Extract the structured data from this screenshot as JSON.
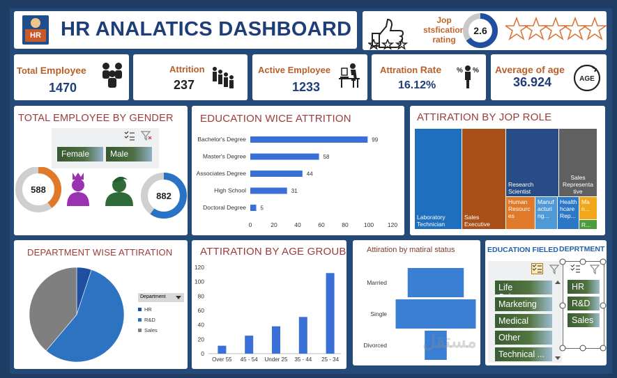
{
  "title": "HR ANALATICS DASHBOARD",
  "logo_text": "HR",
  "satisfaction": {
    "label_line1": "Jop",
    "label_line2": "stsfication",
    "label_line3": "rating",
    "value": "2.6",
    "stars_empty": 5,
    "stars_small": 3
  },
  "kpis": {
    "total_employee": {
      "label_a": "Total ",
      "label_b": "Employee",
      "value": "1470"
    },
    "attrition": {
      "label": "Attrition",
      "value": "237"
    },
    "active_employee": {
      "label": "Active Employee",
      "value": "1233"
    },
    "attrition_rate": {
      "label_a": "Attration ",
      "label_b": "Rate",
      "value": "16.12%"
    },
    "average_age": {
      "label": "Average of age",
      "value": "36.924",
      "icon_text": "AGE"
    }
  },
  "gender": {
    "title": "TOTAL EMPLOYEE BY GENDER",
    "female_label": "Female",
    "male_label": "Male",
    "female_value": "588",
    "male_value": "882"
  },
  "education": {
    "title": "EDUCATION WICE ATTRITION",
    "chart_data": {
      "type": "bar",
      "orientation": "horizontal",
      "categories": [
        "Bachelor's Degree",
        "Master's Degree",
        "Associates Degree",
        "High School",
        "Doctoral Degree"
      ],
      "values": [
        99,
        58,
        44,
        31,
        5
      ],
      "xlim": [
        0,
        120
      ],
      "xticks": [
        "0",
        "20",
        "40",
        "60",
        "80",
        "100",
        "120"
      ],
      "color": "#3a6fd8"
    }
  },
  "jobrole": {
    "title": "ATTIRATION BY JOP ROLE",
    "cells": [
      {
        "label": "Laboratory Technician",
        "color": "#1f6fbf"
      },
      {
        "label": "Sales Executive",
        "color": "#a85018"
      },
      {
        "label": "Research Scientist",
        "color": "#284d86"
      },
      {
        "label": "Sales Representa tive",
        "color": "#606060"
      },
      {
        "label": "Human Resourc es",
        "color": "#e07a2a"
      },
      {
        "label": "Manuf acturi ng...",
        "color": "#4f9ad6"
      },
      {
        "label": "Health hcare Rep...",
        "color": "#2c78c6"
      },
      {
        "label": "Ma n...",
        "color": "#f0a81a"
      },
      {
        "label": "R...",
        "color": "#4f9a3a"
      }
    ]
  },
  "department": {
    "title": "DEPARTMENT WISE ATTIRATION",
    "legend_title": "Department",
    "chart_data": {
      "type": "pie",
      "categories": [
        "HR",
        "R&D",
        "Sales"
      ],
      "values": [
        12,
        133,
        92
      ],
      "colors": [
        "#1f4fa0",
        "#2e73c2",
        "#7f7f7f"
      ]
    }
  },
  "age": {
    "title": "ATTIRATION BY AGE GROUB",
    "chart_data": {
      "type": "bar",
      "categories": [
        "Over 55",
        "45 - 54",
        "Under 25",
        "35 - 44",
        "25 - 34"
      ],
      "values": [
        11,
        25,
        38,
        51,
        112
      ],
      "ylim": [
        0,
        120
      ],
      "yticks": [
        "0",
        "20",
        "40",
        "60",
        "80",
        "100",
        "120"
      ],
      "color": "#3a6fd8"
    }
  },
  "marital": {
    "title": "Attiration by matiral status",
    "chart_data": {
      "type": "bar",
      "orientation": "horizontal-funnel",
      "categories": [
        "Married",
        "Single",
        "Divorced"
      ],
      "values": [
        84,
        120,
        33
      ],
      "color": "#3a7fd4"
    }
  },
  "slicers": {
    "education_title": "EDUCATION FIELED",
    "dept_title": "DEPRTMENT",
    "education_items": [
      "Life Sciences",
      "Marketing",
      "Medical",
      "Other",
      "Technical ..."
    ],
    "dept_items": [
      "HR",
      "R&D",
      "Sales"
    ]
  },
  "watermark": "مستقل"
}
